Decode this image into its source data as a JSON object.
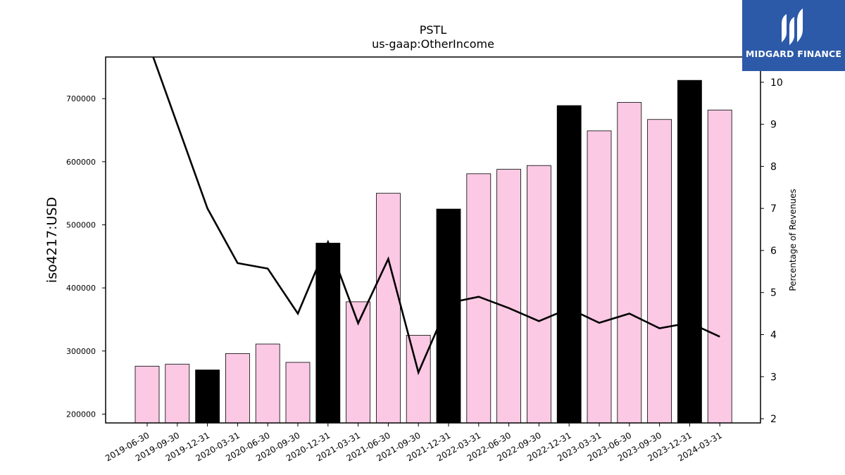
{
  "chart_data": {
    "type": "bar",
    "title": "PSTL",
    "subtitle": "us-gaap:OtherIncome",
    "ylabel": "iso4217:USD",
    "y2label": "Percentage of Revenues",
    "ylim": [
      186000,
      766000
    ],
    "y2lim": [
      1.9,
      10.6
    ],
    "yticks": [
      200000,
      300000,
      400000,
      500000,
      600000,
      700000
    ],
    "y2ticks": [
      2,
      3,
      4,
      5,
      6,
      7,
      8,
      9,
      10
    ],
    "categories": [
      "2019-06-30",
      "2019-09-30",
      "2019-12-31",
      "2020-03-31",
      "2020-06-30",
      "2020-09-30",
      "2020-12-31",
      "2021-03-31",
      "2021-06-30",
      "2021-09-30",
      "2021-12-31",
      "2022-03-31",
      "2022-06-30",
      "2022-09-30",
      "2022-12-31",
      "2023-03-31",
      "2023-06-30",
      "2023-09-30",
      "2023-12-31",
      "2024-03-31"
    ],
    "series": [
      {
        "type": "bar",
        "values": [
          276000,
          279000,
          270000,
          296000,
          311000,
          282000,
          471000,
          378000,
          550000,
          325000,
          525000,
          581000,
          588000,
          594000,
          689000,
          649000,
          694000,
          667000,
          729000,
          682000
        ],
        "highlight": [
          false,
          false,
          true,
          false,
          false,
          false,
          true,
          false,
          false,
          false,
          true,
          false,
          false,
          false,
          true,
          false,
          false,
          false,
          true,
          false
        ]
      },
      {
        "type": "line",
        "axis": "right",
        "values": [
          11.0,
          9.0,
          7.0,
          5.7,
          5.57,
          4.5,
          6.2,
          4.27,
          5.8,
          3.1,
          4.75,
          4.9,
          4.63,
          4.32,
          4.62,
          4.28,
          4.5,
          4.15,
          4.28,
          3.95
        ]
      }
    ],
    "colors": {
      "bar": "#fbc9e4",
      "bar_highlight": "#000000",
      "line": "#000000"
    }
  },
  "logo": {
    "text": "MIDGARD FINANCE",
    "color": "#2d5aa8"
  }
}
